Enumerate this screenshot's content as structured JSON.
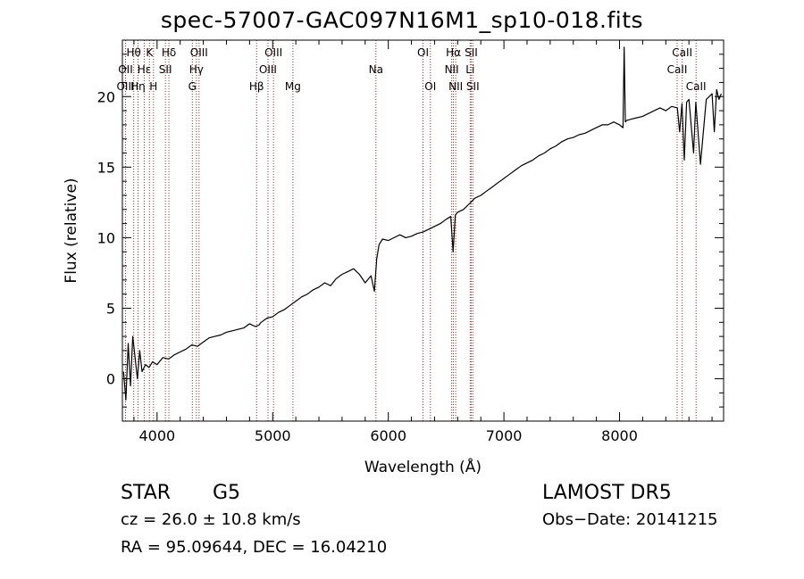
{
  "title": "spec-57007-GAC097N16M1_sp10-018.fits",
  "chart_data": {
    "type": "line",
    "xlabel": "Wavelength (Å)",
    "ylabel": "Flux (relative)",
    "xlim": [
      3700,
      8900
    ],
    "ylim": [
      -3,
      24
    ],
    "xticks": [
      4000,
      5000,
      6000,
      7000,
      8000
    ],
    "yticks": [
      0,
      5,
      10,
      15,
      20
    ],
    "series": [
      {
        "x": [
          3710,
          3730,
          3750,
          3770,
          3790,
          3810,
          3830,
          3850,
          3870,
          3900,
          3930,
          3960,
          4000,
          4050,
          4100,
          4150,
          4200,
          4250,
          4300,
          4350,
          4400,
          4450,
          4500,
          4550,
          4600,
          4650,
          4700,
          4750,
          4800,
          4850,
          4880,
          4900,
          4950,
          5000,
          5050,
          5100,
          5150,
          5200,
          5250,
          5300,
          5350,
          5400,
          5450,
          5500,
          5550,
          5600,
          5650,
          5700,
          5750,
          5800,
          5850,
          5880,
          5900,
          5920,
          5950,
          6000,
          6050,
          6100,
          6150,
          6200,
          6250,
          6300,
          6350,
          6400,
          6450,
          6500,
          6540,
          6560,
          6580,
          6600,
          6650,
          6700,
          6750,
          6800,
          6850,
          6900,
          6950,
          7000,
          7050,
          7100,
          7150,
          7200,
          7250,
          7300,
          7350,
          7400,
          7450,
          7500,
          7550,
          7600,
          7650,
          7700,
          7750,
          7800,
          7850,
          7900,
          7950,
          8000,
          8030,
          8040,
          8050,
          8060,
          8100,
          8150,
          8200,
          8250,
          8300,
          8350,
          8400,
          8450,
          8500,
          8520,
          8540,
          8560,
          8580,
          8600,
          8640,
          8660,
          8700,
          8750,
          8800,
          8820,
          8840,
          8860,
          8880
        ],
        "y": [
          0.5,
          -1.5,
          2.5,
          -0.5,
          3.0,
          1.5,
          0.0,
          2.0,
          0.5,
          1.0,
          0.8,
          1.2,
          1.0,
          1.5,
          1.4,
          1.7,
          1.9,
          2.1,
          2.4,
          2.3,
          2.6,
          2.9,
          3.0,
          3.1,
          3.3,
          3.4,
          3.5,
          3.6,
          3.9,
          3.7,
          3.8,
          4.0,
          4.3,
          4.4,
          4.7,
          4.9,
          5.2,
          5.5,
          5.8,
          6.0,
          6.3,
          6.5,
          6.8,
          6.6,
          7.1,
          7.4,
          7.6,
          7.8,
          7.4,
          6.8,
          7.3,
          6.2,
          8.5,
          9.5,
          9.9,
          9.8,
          10.0,
          10.2,
          10.0,
          10.1,
          10.3,
          10.4,
          10.6,
          10.8,
          11.0,
          11.3,
          11.5,
          9.0,
          11.6,
          11.8,
          12.0,
          12.4,
          12.8,
          13.0,
          13.3,
          13.6,
          13.9,
          14.2,
          14.5,
          14.8,
          15.1,
          15.3,
          15.5,
          15.8,
          16.0,
          16.3,
          16.5,
          16.8,
          17.0,
          17.1,
          17.3,
          17.4,
          17.6,
          17.8,
          18.0,
          18.0,
          18.2,
          18.0,
          17.8,
          23.5,
          18.2,
          18.3,
          18.4,
          18.5,
          18.6,
          18.8,
          19.0,
          19.2,
          19.0,
          19.3,
          19.2,
          17.5,
          19.5,
          15.5,
          19.6,
          19.8,
          16.0,
          19.6,
          15.2,
          19.8,
          20.2,
          17.5,
          20.5,
          19.8,
          20.2
        ]
      }
    ],
    "line_markers": [
      {
        "label": "Hθ",
        "wl": 3798,
        "row": 1
      },
      {
        "label": "OII",
        "wl": 3727,
        "row": 2
      },
      {
        "label": "OIII",
        "wl": 3727,
        "row": 3
      },
      {
        "label": "Hε",
        "wl": 3889,
        "row": 2
      },
      {
        "label": "Hη",
        "wl": 3835,
        "row": 3
      },
      {
        "label": "K",
        "wl": 3934,
        "row": 1
      },
      {
        "label": "H",
        "wl": 3969,
        "row": 3
      },
      {
        "label": "Hδ",
        "wl": 4102,
        "row": 1
      },
      {
        "label": "SII",
        "wl": 4072,
        "row": 2
      },
      {
        "label": "OIII",
        "wl": 4363,
        "row": 1
      },
      {
        "label": "Hγ",
        "wl": 4340,
        "row": 2
      },
      {
        "label": "G",
        "wl": 4305,
        "row": 3
      },
      {
        "label": "OIII",
        "wl": 5007,
        "row": 1
      },
      {
        "label": "OIII",
        "wl": 4959,
        "row": 2
      },
      {
        "label": "Hβ",
        "wl": 4861,
        "row": 3
      },
      {
        "label": "Mg",
        "wl": 5175,
        "row": 3
      },
      {
        "label": "Na",
        "wl": 5893,
        "row": 2
      },
      {
        "label": "OI",
        "wl": 6300,
        "row": 1
      },
      {
        "label": "OI",
        "wl": 6364,
        "row": 3
      },
      {
        "label": "Hα",
        "wl": 6563,
        "row": 1
      },
      {
        "label": "NII",
        "wl": 6548,
        "row": 2
      },
      {
        "label": "NII",
        "wl": 6583,
        "row": 3
      },
      {
        "label": "SII",
        "wl": 6717,
        "row": 1
      },
      {
        "label": "Li",
        "wl": 6708,
        "row": 2
      },
      {
        "label": "SII",
        "wl": 6731,
        "row": 3
      },
      {
        "label": "CaII",
        "wl": 8542,
        "row": 1
      },
      {
        "label": "CaII",
        "wl": 8498,
        "row": 2
      },
      {
        "label": "CaII",
        "wl": 8662,
        "row": 3
      }
    ]
  },
  "info": {
    "object_class": "STAR",
    "subclass": "G5",
    "survey": "LAMOST DR5",
    "cz": "cz = 26.0 ± 10.8 km/s",
    "obs_date": "Obs−Date: 20141215",
    "radec": "RA =  95.09644, DEC =  16.04210"
  },
  "colors": {
    "spectrum": "#000000",
    "marker_line": "#b22222",
    "axes": "#000000"
  }
}
